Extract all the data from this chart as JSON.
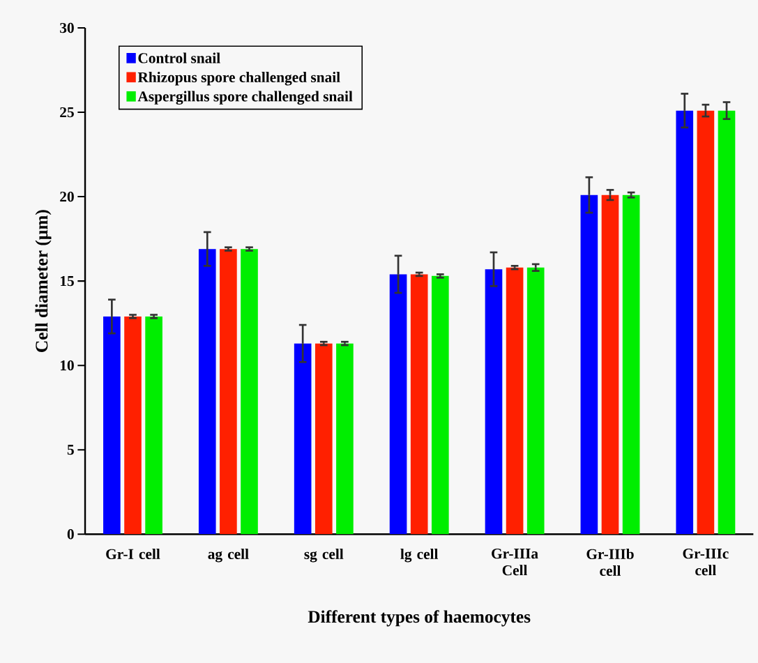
{
  "chart_data": {
    "type": "bar",
    "xlabel": "Different types of haemocytes",
    "ylabel": "Cell diameter (µm)",
    "categories": [
      "Gr-I cell",
      "ag cell",
      "sg cell",
      "lg cell",
      "Gr-IIIa Cell",
      "Gr-IIIb cell",
      "Gr-IIIc cell"
    ],
    "series": [
      {
        "name": "Control snail",
        "color": "#0000ff",
        "values": [
          12.9,
          16.9,
          11.3,
          15.4,
          15.7,
          20.1,
          25.1
        ],
        "errors": [
          1.0,
          1.0,
          1.1,
          1.1,
          1.0,
          1.05,
          1.0
        ]
      },
      {
        "name": "Rhizopus spore challenged snail",
        "color": "#ff2000",
        "values": [
          12.9,
          16.9,
          11.3,
          15.4,
          15.8,
          20.1,
          25.1
        ],
        "errors": [
          0.1,
          0.1,
          0.1,
          0.1,
          0.1,
          0.3,
          0.35
        ]
      },
      {
        "name": "Aspergillus spore challenged snail",
        "color": "#00ee00",
        "values": [
          12.9,
          16.9,
          11.3,
          15.3,
          15.8,
          20.1,
          25.1
        ],
        "errors": [
          0.1,
          0.1,
          0.1,
          0.1,
          0.2,
          0.15,
          0.5
        ]
      }
    ],
    "ylim": [
      0,
      30
    ],
    "yticks": [
      0,
      5,
      10,
      15,
      20,
      25,
      30
    ],
    "legend": "top left",
    "grid": false
  }
}
